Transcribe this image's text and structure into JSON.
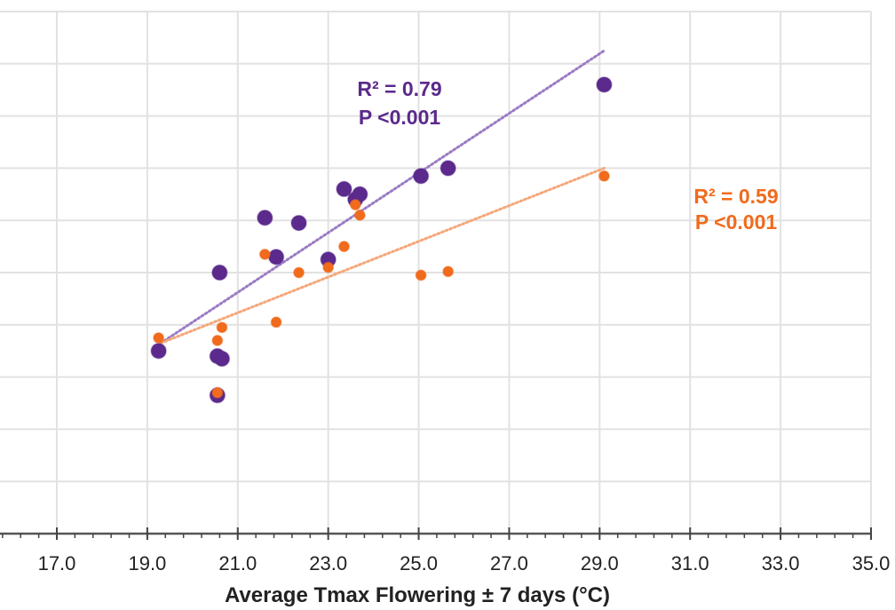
{
  "chart_data": {
    "type": "scatter",
    "title": "",
    "xlabel": "Average Tmax Flowering ± 7 days (°C)",
    "ylabel": "",
    "xlim": [
      17.0,
      35.0
    ],
    "x_ticks": [
      "17.0",
      "19.0",
      "21.0",
      "23.0",
      "25.0",
      "27.0",
      "29.0",
      "31.0",
      "33.0",
      "35.0"
    ],
    "x_tick_values": [
      17,
      19,
      21,
      23,
      25,
      27,
      29,
      31,
      33,
      35
    ],
    "x_minor_step": 0.4,
    "ylim_grid_units": [
      0,
      10
    ],
    "y_note": "y-axis labels not visible (cropped); y values given in gridline units from the x-axis",
    "grid": true,
    "series": [
      {
        "name": "purple",
        "color": "#5b2a8c",
        "marker": "large-circle",
        "points": [
          {
            "x": 19.25,
            "y": 3.5
          },
          {
            "x": 20.55,
            "y": 3.4
          },
          {
            "x": 20.65,
            "y": 3.35
          },
          {
            "x": 20.55,
            "y": 2.65
          },
          {
            "x": 20.6,
            "y": 5.0
          },
          {
            "x": 21.6,
            "y": 6.05
          },
          {
            "x": 21.85,
            "y": 5.3
          },
          {
            "x": 22.35,
            "y": 5.95
          },
          {
            "x": 23.0,
            "y": 5.25
          },
          {
            "x": 23.35,
            "y": 6.6
          },
          {
            "x": 23.6,
            "y": 6.4
          },
          {
            "x": 23.7,
            "y": 6.5
          },
          {
            "x": 25.05,
            "y": 6.85
          },
          {
            "x": 25.65,
            "y": 7.0
          },
          {
            "x": 29.1,
            "y": 8.6
          }
        ],
        "trendline": {
          "x": [
            19.3,
            29.1
          ],
          "y": [
            3.65,
            9.25
          ],
          "style": "dotted"
        },
        "annotation": {
          "r2": "R² = 0.79",
          "p": "P <0.001"
        }
      },
      {
        "name": "orange",
        "color": "#f06b1c",
        "marker": "small-circle",
        "points": [
          {
            "x": 19.25,
            "y": 3.75
          },
          {
            "x": 20.55,
            "y": 3.7
          },
          {
            "x": 20.65,
            "y": 3.95
          },
          {
            "x": 20.55,
            "y": 2.7
          },
          {
            "x": 21.6,
            "y": 5.35
          },
          {
            "x": 21.85,
            "y": 4.05
          },
          {
            "x": 22.35,
            "y": 5.0
          },
          {
            "x": 23.0,
            "y": 5.1
          },
          {
            "x": 23.35,
            "y": 5.5
          },
          {
            "x": 23.6,
            "y": 6.3
          },
          {
            "x": 23.7,
            "y": 6.1
          },
          {
            "x": 25.05,
            "y": 4.95
          },
          {
            "x": 25.65,
            "y": 5.02
          },
          {
            "x": 29.1,
            "y": 6.85
          }
        ],
        "trendline": {
          "x": [
            19.3,
            29.1
          ],
          "y": [
            3.65,
            7.0
          ],
          "style": "dotted"
        },
        "annotation": {
          "r2": "R² = 0.59",
          "p": "P <0.001"
        }
      }
    ]
  }
}
